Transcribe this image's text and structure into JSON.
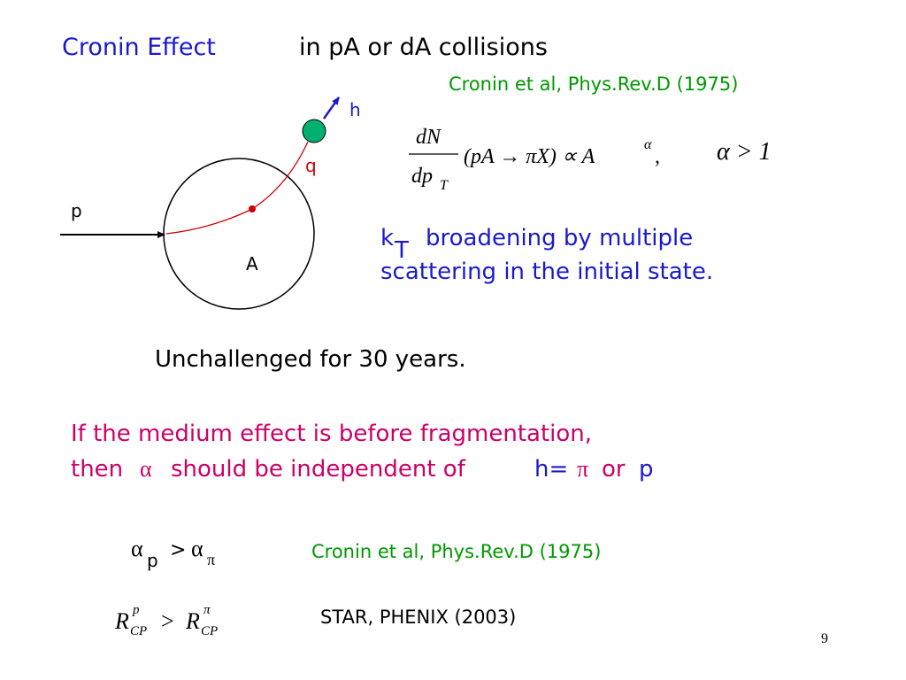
{
  "title": {
    "heading": "Cronin Effect",
    "subheading": "in pA or dA collisions",
    "reference": "Cronin et al, Phys.Rev.D (1975)"
  },
  "diagram": {
    "hadron": "h",
    "parton": "q",
    "projectile": "p",
    "nucleus": "A"
  },
  "formula": {
    "numerator": "dN",
    "denominator": "dp",
    "denominator_sub": "T",
    "process": "(pA → πX) ∝ A",
    "exponent": "α",
    "comma": ",",
    "condition": "α > 1"
  },
  "broadening": {
    "k": "k",
    "sub": "T",
    "line1": "broadening by multiple",
    "line2": "scattering in the initial state."
  },
  "statement": "Unchallenged for 30 years.",
  "hypothesis": {
    "line1": "If the medium effect is before fragmentation,",
    "then": "then",
    "alpha": "α",
    "middle": "should be independent of",
    "h": "h=",
    "pi": "π",
    "or": "or",
    "p": "p"
  },
  "results": [
    {
      "lhs": "α",
      "lhs_sub": "p",
      "relation": ">",
      "rhs": "α",
      "rhs_sub": "π",
      "reference": "Cronin et al, Phys.Rev.D (1975)"
    },
    {
      "lhs": "R",
      "lhs_sup": "p",
      "lhs_sub": "CP",
      "relation": ">",
      "rhs": "R",
      "rhs_sup": "π",
      "rhs_sub": "CP",
      "reference": "STAR, PHENIX (2003)"
    }
  ],
  "page_number": "9"
}
